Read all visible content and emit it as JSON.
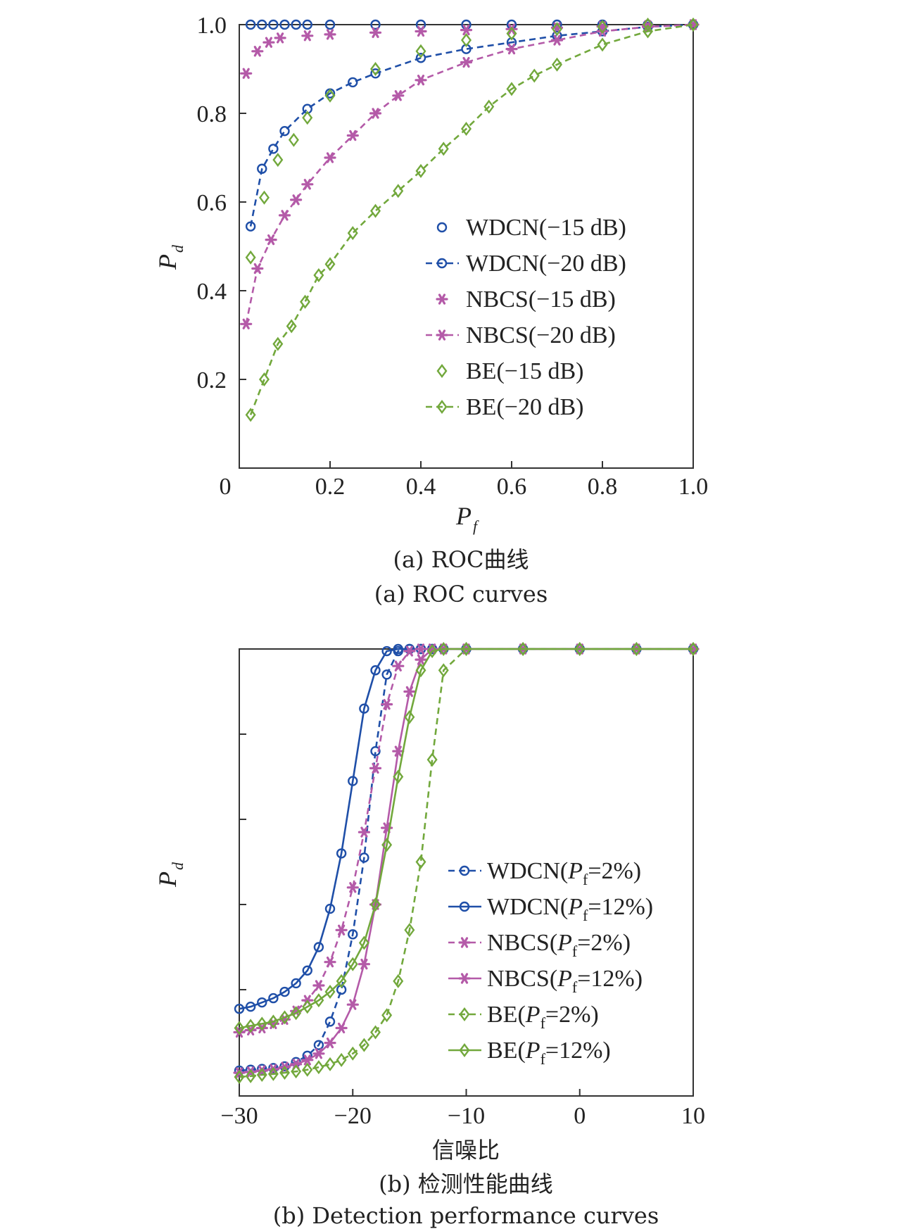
{
  "colors": {
    "blue": "#1f4fa8",
    "magenta": "#b45aa8",
    "green": "#72a83c",
    "axis": "#333333"
  },
  "chart_data": [
    {
      "type": "line",
      "caption_cn": "(a) ROC曲线",
      "caption_en": "(a) ROC curves",
      "xlabel_main": "P",
      "xlabel_sub": "f",
      "ylabel_main": "P",
      "ylabel_sub": "d",
      "xlim": [
        0,
        1.0
      ],
      "ylim": [
        0,
        1.0
      ],
      "xticks": [
        "0",
        "0.2",
        "0.4",
        "0.6",
        "0.8",
        "1.0"
      ],
      "yticks": [
        "0.2",
        "0.4",
        "0.6",
        "0.8",
        "1.0"
      ],
      "legend_position": "center-right",
      "series": [
        {
          "name": "WDCN(−15 dB)",
          "color": "blue",
          "marker": "circle",
          "dashed": false,
          "line": false,
          "x": [
            0.025,
            0.05,
            0.075,
            0.1,
            0.125,
            0.15,
            0.2,
            0.3,
            0.4,
            0.5,
            0.6,
            0.7,
            0.8,
            0.9,
            1.0
          ],
          "y": [
            1.0,
            1.0,
            1.0,
            1.0,
            1.0,
            1.0,
            1.0,
            1.0,
            1.0,
            1.0,
            1.0,
            1.0,
            1.0,
            1.0,
            1.0
          ]
        },
        {
          "name": "WDCN(−20 dB)",
          "color": "blue",
          "marker": "circle",
          "dashed": true,
          "line": true,
          "x": [
            0.025,
            0.05,
            0.075,
            0.1,
            0.15,
            0.2,
            0.25,
            0.3,
            0.4,
            0.5,
            0.6,
            0.7,
            0.8,
            0.9,
            1.0
          ],
          "y": [
            0.545,
            0.675,
            0.72,
            0.76,
            0.81,
            0.845,
            0.87,
            0.89,
            0.925,
            0.945,
            0.96,
            0.975,
            0.985,
            0.995,
            1.0
          ]
        },
        {
          "name": "NBCS(−15 dB)",
          "color": "magenta",
          "marker": "star",
          "dashed": false,
          "line": false,
          "x": [
            0.015,
            0.04,
            0.065,
            0.09,
            0.15,
            0.2,
            0.3,
            0.4,
            0.5,
            0.6,
            0.7,
            0.8,
            0.9,
            1.0
          ],
          "y": [
            0.89,
            0.94,
            0.96,
            0.97,
            0.975,
            0.978,
            0.982,
            0.985,
            0.988,
            0.99,
            0.993,
            0.996,
            0.998,
            1.0
          ]
        },
        {
          "name": "NBCS(−20 dB)",
          "color": "magenta",
          "marker": "star",
          "dashed": true,
          "line": true,
          "x": [
            0.015,
            0.04,
            0.07,
            0.1,
            0.125,
            0.15,
            0.2,
            0.25,
            0.3,
            0.35,
            0.4,
            0.5,
            0.6,
            0.7,
            0.8,
            0.9,
            1.0
          ],
          "y": [
            0.325,
            0.45,
            0.515,
            0.57,
            0.605,
            0.64,
            0.7,
            0.75,
            0.8,
            0.84,
            0.875,
            0.915,
            0.945,
            0.965,
            0.985,
            0.995,
            1.0
          ]
        },
        {
          "name": "BE(−15 dB)",
          "color": "green",
          "marker": "diamond",
          "dashed": false,
          "line": false,
          "x": [
            0.025,
            0.055,
            0.085,
            0.12,
            0.15,
            0.2,
            0.3,
            0.4,
            0.5,
            0.6,
            0.7,
            0.8,
            0.9,
            1.0
          ],
          "y": [
            0.475,
            0.61,
            0.695,
            0.74,
            0.79,
            0.84,
            0.9,
            0.94,
            0.965,
            0.98,
            0.99,
            0.995,
            1.0,
            1.0
          ]
        },
        {
          "name": "BE(−20 dB)",
          "color": "green",
          "marker": "diamond",
          "dashed": true,
          "line": true,
          "x": [
            0.025,
            0.055,
            0.085,
            0.115,
            0.145,
            0.175,
            0.2,
            0.25,
            0.3,
            0.35,
            0.4,
            0.45,
            0.5,
            0.55,
            0.6,
            0.65,
            0.7,
            0.8,
            0.9,
            1.0
          ],
          "y": [
            0.12,
            0.2,
            0.28,
            0.32,
            0.375,
            0.435,
            0.46,
            0.53,
            0.58,
            0.625,
            0.67,
            0.72,
            0.765,
            0.815,
            0.855,
            0.885,
            0.91,
            0.955,
            0.985,
            1.0
          ]
        }
      ]
    },
    {
      "type": "line",
      "caption_cn": "(b) 检测性能曲线",
      "caption_en": "(b) Detection performance curves",
      "xlabel": "信噪比",
      "ylabel_main": "P",
      "ylabel_sub": "d",
      "xlim": [
        -30,
        10
      ],
      "ylim": [
        0,
        1.0
      ],
      "xticks": [
        "−30",
        "−20",
        "−10",
        "0",
        "10"
      ],
      "legend_position": "lower-right",
      "series": [
        {
          "name": "WDCN(",
          "name_p": "P",
          "name_sub": "f",
          "name_tail": "=2%)",
          "color": "blue",
          "marker": "circle",
          "dashed": true,
          "x": [
            -30,
            -29,
            -28,
            -27,
            -26,
            -25,
            -24,
            -23,
            -22,
            -21,
            -20,
            -19,
            -18,
            -17,
            -16,
            -15,
            -14,
            -13,
            -12,
            -10,
            -5,
            0,
            5,
            10
          ],
          "y": [
            0.01,
            0.012,
            0.014,
            0.016,
            0.02,
            0.03,
            0.045,
            0.07,
            0.125,
            0.2,
            0.33,
            0.51,
            0.76,
            0.94,
            0.995,
            1.0,
            1.0,
            1.0,
            1.0,
            1.0,
            1.0,
            1.0,
            1.0,
            1.0
          ]
        },
        {
          "name": "WDCN(",
          "name_p": "P",
          "name_sub": "f",
          "name_tail": "=12%)",
          "color": "blue",
          "marker": "circle",
          "dashed": false,
          "x": [
            -30,
            -29,
            -28,
            -27,
            -26,
            -25,
            -24,
            -23,
            -22,
            -21,
            -20,
            -19,
            -18,
            -17,
            -16,
            -15,
            -14,
            -13,
            -12,
            -10,
            -5,
            0,
            5,
            10
          ],
          "y": [
            0.155,
            0.16,
            0.17,
            0.18,
            0.195,
            0.215,
            0.245,
            0.3,
            0.39,
            0.52,
            0.69,
            0.86,
            0.95,
            0.995,
            1.0,
            1.0,
            1.0,
            1.0,
            1.0,
            1.0,
            1.0,
            1.0,
            1.0,
            1.0
          ]
        },
        {
          "name": "NBCS(",
          "name_p": "P",
          "name_sub": "f",
          "name_tail": "=2%)",
          "color": "magenta",
          "marker": "star",
          "dashed": true,
          "x": [
            -30,
            -29,
            -28,
            -27,
            -26,
            -25,
            -24,
            -23,
            -22,
            -21,
            -20,
            -19,
            -18,
            -17,
            -16,
            -15,
            -14,
            -13,
            -12,
            -10,
            -5,
            0,
            5,
            10
          ],
          "y": [
            0.1,
            0.105,
            0.11,
            0.12,
            0.13,
            0.15,
            0.175,
            0.21,
            0.265,
            0.34,
            0.44,
            0.57,
            0.72,
            0.87,
            0.96,
            0.995,
            1.0,
            1.0,
            1.0,
            1.0,
            1.0,
            1.0,
            1.0,
            1.0
          ]
        },
        {
          "name": "NBCS(",
          "name_p": "P",
          "name_sub": "f",
          "name_tail": "=12%)",
          "color": "magenta",
          "marker": "star",
          "dashed": false,
          "x": [
            -30,
            -29,
            -28,
            -27,
            -26,
            -25,
            -24,
            -23,
            -22,
            -21,
            -20,
            -19,
            -18,
            -17,
            -16,
            -15,
            -14,
            -13,
            -12,
            -10,
            -5,
            0,
            5,
            10
          ],
          "y": [
            0.005,
            0.007,
            0.01,
            0.013,
            0.018,
            0.025,
            0.035,
            0.05,
            0.075,
            0.11,
            0.165,
            0.26,
            0.4,
            0.58,
            0.76,
            0.9,
            0.975,
            1.0,
            1.0,
            1.0,
            1.0,
            1.0,
            1.0,
            1.0
          ]
        },
        {
          "name": "BE(",
          "name_p": "P",
          "name_sub": "f",
          "name_tail": "=2%)",
          "color": "green",
          "marker": "diamond",
          "dashed": true,
          "x": [
            -30,
            -29,
            -28,
            -27,
            -26,
            -25,
            -24,
            -23,
            -22,
            -21,
            -20,
            -19,
            -18,
            -17,
            -16,
            -15,
            -14,
            -13,
            -12,
            -10,
            -5,
            0,
            5,
            10
          ],
          "y": [
            -0.005,
            -0.003,
            0.0,
            0.002,
            0.005,
            0.008,
            0.012,
            0.018,
            0.025,
            0.035,
            0.05,
            0.07,
            0.1,
            0.14,
            0.22,
            0.34,
            0.5,
            0.74,
            0.95,
            1.0,
            1.0,
            1.0,
            1.0,
            1.0
          ]
        },
        {
          "name": "BE(",
          "name_p": "P",
          "name_sub": "f",
          "name_tail": "=12%)",
          "color": "green",
          "marker": "diamond",
          "dashed": false,
          "x": [
            -30,
            -29,
            -28,
            -27,
            -26,
            -25,
            -24,
            -23,
            -22,
            -21,
            -20,
            -19,
            -18,
            -17,
            -16,
            -15,
            -14,
            -13,
            -12,
            -10,
            -5,
            0,
            5,
            10
          ],
          "y": [
            0.11,
            0.115,
            0.12,
            0.125,
            0.135,
            0.145,
            0.16,
            0.175,
            0.195,
            0.22,
            0.26,
            0.31,
            0.4,
            0.54,
            0.7,
            0.84,
            0.95,
            0.995,
            1.0,
            1.0,
            1.0,
            1.0,
            1.0,
            1.0
          ]
        }
      ]
    }
  ]
}
